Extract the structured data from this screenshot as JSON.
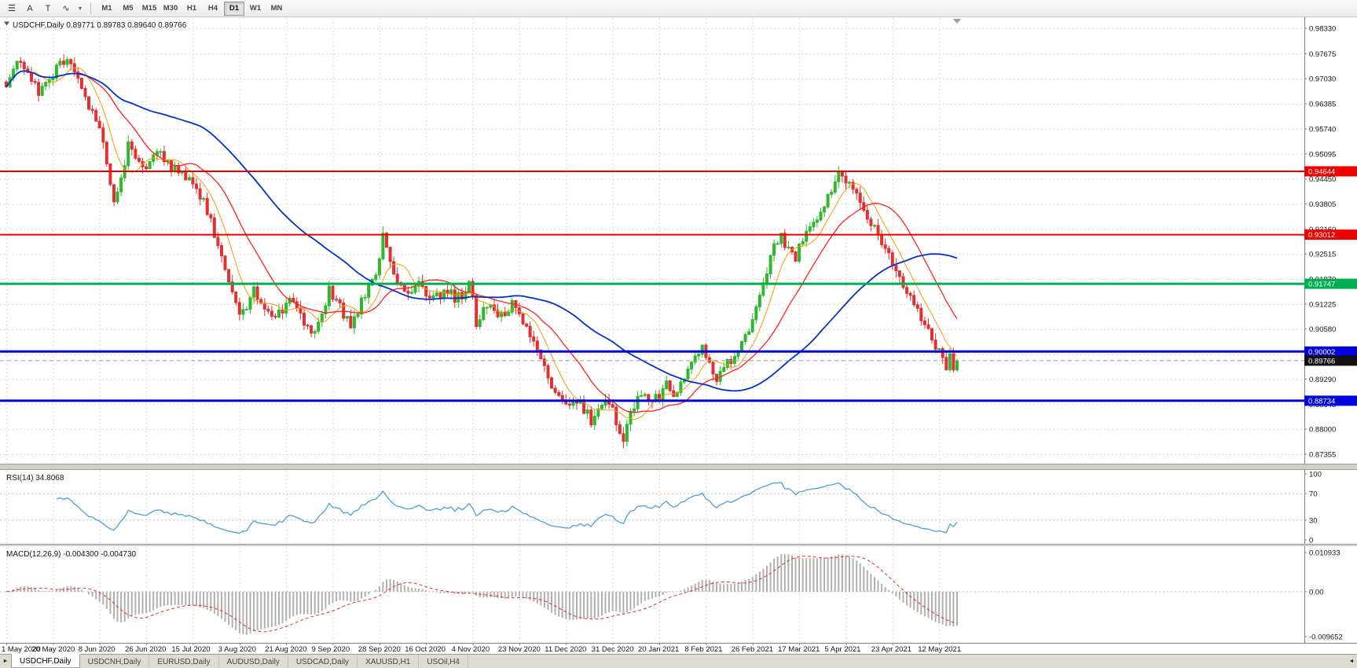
{
  "toolbar": {
    "icon_buttons": [
      {
        "name": "menu",
        "glyph": "☰"
      },
      {
        "name": "text-label",
        "glyph": "A"
      },
      {
        "name": "text-frame",
        "glyph": "T"
      },
      {
        "name": "indicator-wave",
        "glyph": "∿"
      },
      {
        "name": "dropdown-caret",
        "glyph": "▾"
      }
    ],
    "timeframes": [
      "M1",
      "M5",
      "M15",
      "M30",
      "H1",
      "H4",
      "D1",
      "W1",
      "MN"
    ],
    "active_timeframe": "D1"
  },
  "main_chart": {
    "collapse_icon": "▼",
    "title_symbol": "USDCHF,Daily",
    "title_ohlc": "0.89771 0.89783 0.89640 0.89766"
  },
  "price_axis_labels": [
    "0.98330",
    "0.97675",
    "0.97030",
    "0.96385",
    "0.95740",
    "0.95095",
    "0.94450",
    "0.93805",
    "0.93160",
    "0.92515",
    "0.91870",
    "0.91225",
    "0.90580",
    "0.89935",
    "0.89290",
    "0.88645",
    "0.88000",
    "0.87355"
  ],
  "rsi_panel": {
    "title": "RSI(14)",
    "value": "34.8068",
    "axis_labels": [
      "100",
      "70",
      "30",
      "0"
    ]
  },
  "macd_panel": {
    "title": "MACD(12,26,9)",
    "main_value": "-0.004300",
    "signal_value": "-0.004730",
    "axis_labels": [
      "0.010933",
      "0.00",
      "-0.009652"
    ]
  },
  "date_axis_labels": [
    "1 May 2020",
    "20 May 2020",
    "8 Jun 2020",
    "26 Jun 2020",
    "15 Jul 2020",
    "3 Aug 2020",
    "21 Aug 2020",
    "9 Sep 2020",
    "28 Sep 2020",
    "16 Oct 2020",
    "4 Nov 2020",
    "23 Nov 2020",
    "11 Dec 2020",
    "31 Dec 2020",
    "20 Jan 2021",
    "8 Feb 2021",
    "26 Feb 2021",
    "17 Mar 2021",
    "5 Apr 2021",
    "23 Apr 2021",
    "12 May 2021"
  ],
  "tabbar": {
    "scroll_left_glyph": "►",
    "scroll_right_glyph": "◄",
    "tabs": [
      "USDCHF,Daily",
      "USDCNH,Daily",
      "EURUSD,Daily",
      "AUDUSD,Daily",
      "USDCAD,Daily",
      "XAUUSD,H1",
      "USOil,H4"
    ]
  },
  "colors": {
    "up_candle": "#2eb82e",
    "down_candle": "#e03030",
    "ma_fast": "#ff9900",
    "ma_mid": "#ff2020",
    "ma_slow": "#0033cc",
    "rsi_line": "#4a9fdc",
    "macd_hist": "#b0b0b0",
    "macd_signal": "#e03030",
    "grid": "#dadada"
  },
  "chart_data": {
    "type": "candlestick",
    "symbol": "USDCHF",
    "timeframe": "Daily",
    "title": "USDCHF,Daily",
    "ohlc": {
      "open": 0.89771,
      "high": 0.89783,
      "low": 0.8964,
      "close": 0.89766
    },
    "y_range": [
      0.87355,
      0.9833
    ],
    "y_tick_step": 0.00645,
    "num_candles": 266,
    "x_tick_every": 13,
    "x_tick_labels": [
      "1 May 2020",
      "20 May 2020",
      "8 Jun 2020",
      "26 Jun 2020",
      "15 Jul 2020",
      "3 Aug 2020",
      "21 Aug 2020",
      "9 Sep 2020",
      "28 Sep 2020",
      "16 Oct 2020",
      "4 Nov 2020",
      "23 Nov 2020",
      "11 Dec 2020",
      "31 Dec 2020",
      "20 Jan 2021",
      "8 Feb 2021",
      "26 Feb 2021",
      "17 Mar 2021",
      "5 Apr 2021",
      "23 Apr 2021",
      "12 May 2021"
    ],
    "close_path_anchors": [
      [
        0,
        0.9695
      ],
      [
        3,
        0.9745
      ],
      [
        6,
        0.9722
      ],
      [
        9,
        0.9662
      ],
      [
        12,
        0.9705
      ],
      [
        15,
        0.974
      ],
      [
        17,
        0.9745
      ],
      [
        20,
        0.9698
      ],
      [
        22,
        0.9648
      ],
      [
        24,
        0.9618
      ],
      [
        26,
        0.9585
      ],
      [
        28,
        0.9478
      ],
      [
        30,
        0.9388
      ],
      [
        32,
        0.9452
      ],
      [
        34,
        0.953
      ],
      [
        36,
        0.9505
      ],
      [
        39,
        0.9465
      ],
      [
        41,
        0.95
      ],
      [
        43,
        0.9515
      ],
      [
        45,
        0.948
      ],
      [
        47,
        0.9468
      ],
      [
        50,
        0.945
      ],
      [
        52,
        0.9436
      ],
      [
        55,
        0.9385
      ],
      [
        57,
        0.934
      ],
      [
        59,
        0.9268
      ],
      [
        61,
        0.921
      ],
      [
        63,
        0.915
      ],
      [
        65,
        0.9098
      ],
      [
        67,
        0.912
      ],
      [
        69,
        0.9155
      ],
      [
        71,
        0.9135
      ],
      [
        73,
        0.9105
      ],
      [
        75,
        0.9088
      ],
      [
        77,
        0.9105
      ],
      [
        79,
        0.913
      ],
      [
        81,
        0.9108
      ],
      [
        83,
        0.9075
      ],
      [
        86,
        0.9052
      ],
      [
        88,
        0.91
      ],
      [
        90,
        0.9162
      ],
      [
        92,
        0.913
      ],
      [
        94,
        0.9098
      ],
      [
        96,
        0.9072
      ],
      [
        98,
        0.9108
      ],
      [
        100,
        0.9148
      ],
      [
        102,
        0.9188
      ],
      [
        104,
        0.9232
      ],
      [
        105,
        0.9295
      ],
      [
        107,
        0.9238
      ],
      [
        109,
        0.918
      ],
      [
        111,
        0.9152
      ],
      [
        113,
        0.9165
      ],
      [
        115,
        0.918
      ],
      [
        117,
        0.9152
      ],
      [
        119,
        0.9132
      ],
      [
        121,
        0.9148
      ],
      [
        123,
        0.9162
      ],
      [
        125,
        0.9132
      ],
      [
        127,
        0.9148
      ],
      [
        129,
        0.918
      ],
      [
        130,
        0.9148
      ],
      [
        131,
        0.9052
      ],
      [
        133,
        0.9118
      ],
      [
        135,
        0.9132
      ],
      [
        137,
        0.9102
      ],
      [
        139,
        0.9092
      ],
      [
        141,
        0.912
      ],
      [
        143,
        0.91
      ],
      [
        145,
        0.9062
      ],
      [
        147,
        0.903
      ],
      [
        149,
        0.8982
      ],
      [
        151,
        0.8932
      ],
      [
        153,
        0.89
      ],
      [
        155,
        0.8872
      ],
      [
        157,
        0.8852
      ],
      [
        159,
        0.888
      ],
      [
        161,
        0.8852
      ],
      [
        163,
        0.8822
      ],
      [
        165,
        0.8842
      ],
      [
        167,
        0.887
      ],
      [
        169,
        0.8848
      ],
      [
        171,
        0.879
      ],
      [
        172,
        0.8762
      ],
      [
        174,
        0.8842
      ],
      [
        176,
        0.888
      ],
      [
        178,
        0.89
      ],
      [
        180,
        0.8872
      ],
      [
        182,
        0.8882
      ],
      [
        184,
        0.8912
      ],
      [
        186,
        0.8892
      ],
      [
        188,
        0.8922
      ],
      [
        190,
        0.8952
      ],
      [
        192,
        0.899
      ],
      [
        194,
        0.9012
      ],
      [
        196,
        0.8972
      ],
      [
        198,
        0.8935
      ],
      [
        200,
        0.8958
      ],
      [
        202,
        0.898
      ],
      [
        204,
        0.9005
      ],
      [
        206,
        0.9045
      ],
      [
        208,
        0.9082
      ],
      [
        210,
        0.9142
      ],
      [
        212,
        0.9202
      ],
      [
        214,
        0.9272
      ],
      [
        216,
        0.9292
      ],
      [
        218,
        0.9262
      ],
      [
        220,
        0.9242
      ],
      [
        222,
        0.9288
      ],
      [
        224,
        0.9322
      ],
      [
        226,
        0.9345
      ],
      [
        228,
        0.9385
      ],
      [
        230,
        0.9422
      ],
      [
        232,
        0.9455
      ],
      [
        234,
        0.9438
      ],
      [
        236,
        0.9412
      ],
      [
        238,
        0.9382
      ],
      [
        240,
        0.9352
      ],
      [
        242,
        0.9322
      ],
      [
        244,
        0.9282
      ],
      [
        246,
        0.9252
      ],
      [
        248,
        0.9215
      ],
      [
        250,
        0.9165
      ],
      [
        252,
        0.9132
      ],
      [
        254,
        0.9102
      ],
      [
        256,
        0.9065
      ],
      [
        258,
        0.9042
      ],
      [
        259,
        0.9008
      ],
      [
        260,
        0.8998
      ],
      [
        261,
        0.8975
      ],
      [
        262,
        0.8952
      ],
      [
        263,
        0.8988
      ],
      [
        264,
        0.8962
      ],
      [
        265,
        0.89766
      ]
    ],
    "moving_averages": [
      {
        "type": "sma",
        "period": 8,
        "color_key": "ma_fast"
      },
      {
        "type": "sma",
        "period": 20,
        "color_key": "ma_mid"
      },
      {
        "type": "sma",
        "period": 55,
        "color_key": "ma_slow"
      }
    ],
    "horizontal_lines": [
      {
        "price": 0.94644,
        "label": "0.94644",
        "color": "#ee0000",
        "width": 2
      },
      {
        "price": 0.93012,
        "label": "0.93012",
        "color": "#ee0000",
        "width": 2
      },
      {
        "price": 0.91747,
        "label": "0.91747",
        "color": "#00b050",
        "width": 3
      },
      {
        "price": 0.90002,
        "label": "0.90002",
        "color": "#0000dd",
        "width": 3
      },
      {
        "price": 0.88734,
        "label": "0.88734",
        "color": "#0000dd",
        "width": 3
      }
    ],
    "current_price": {
      "value": 0.89766,
      "label": "0.89766"
    },
    "indicators": [
      {
        "name": "RSI",
        "period": 14,
        "display_value": 34.8068,
        "range": [
          0,
          100
        ],
        "levels": [
          70,
          30
        ]
      },
      {
        "name": "MACD",
        "fast": 12,
        "slow": 26,
        "signal": 9,
        "main_value": -0.0043,
        "signal_value": -0.00473,
        "axis_max": 0.010933,
        "axis_min": -0.009652
      }
    ]
  }
}
